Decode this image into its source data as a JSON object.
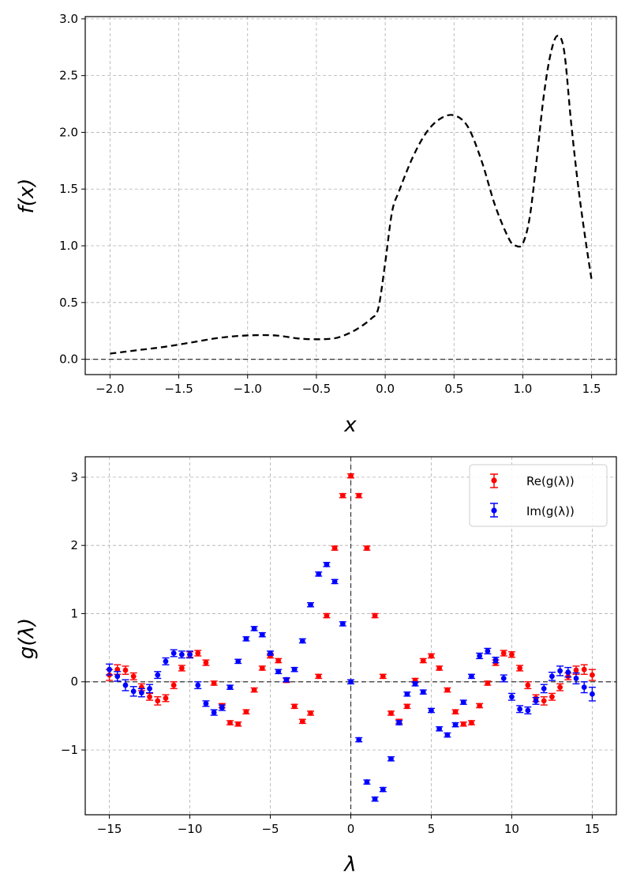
{
  "chart_data": [
    {
      "type": "line",
      "xlabel": "x",
      "ylabel": "f(x)",
      "xlim": [
        -2.18,
        1.68
      ],
      "ylim": [
        -0.135,
        3.02
      ],
      "xticks": [
        -2.0,
        -1.5,
        -1.0,
        -0.5,
        0.0,
        0.5,
        1.0,
        1.5
      ],
      "xtick_labels": [
        "−2.0",
        "−1.5",
        "−1.0",
        "−0.5",
        "0.0",
        "0.5",
        "1.0",
        "1.5"
      ],
      "yticks": [
        0.0,
        0.5,
        1.0,
        1.5,
        2.0,
        2.5,
        3.0
      ],
      "ytick_labels": [
        "0.0",
        "0.5",
        "1.0",
        "1.5",
        "2.0",
        "2.5",
        "3.0"
      ],
      "grid": true,
      "hline": 0.0,
      "series": [
        {
          "name": "f(x)",
          "color": "#000000",
          "style": "dashed",
          "x": [
            -2.0,
            -1.8,
            -1.6,
            -1.4,
            -1.2,
            -1.0,
            -0.8,
            -0.6,
            -0.4,
            -0.3,
            -0.2,
            -0.1,
            -0.05,
            0.0,
            0.05,
            0.1,
            0.2,
            0.3,
            0.4,
            0.5,
            0.6,
            0.7,
            0.8,
            0.9,
            0.95,
            1.0,
            1.05,
            1.1,
            1.15,
            1.2,
            1.25,
            1.3,
            1.35,
            1.4,
            1.45,
            1.5
          ],
          "y": [
            0.05,
            0.08,
            0.11,
            0.15,
            0.19,
            0.21,
            0.21,
            0.18,
            0.18,
            0.21,
            0.27,
            0.36,
            0.45,
            0.85,
            1.3,
            1.48,
            1.78,
            2.0,
            2.12,
            2.15,
            2.05,
            1.75,
            1.35,
            1.06,
            1.0,
            1.02,
            1.25,
            1.75,
            2.3,
            2.68,
            2.85,
            2.72,
            2.1,
            1.55,
            1.1,
            0.7
          ]
        }
      ]
    },
    {
      "type": "scatter",
      "xlabel": "λ",
      "ylabel": "g(λ)",
      "xlim": [
        -16.5,
        16.5
      ],
      "ylim": [
        -1.95,
        3.3
      ],
      "xticks": [
        -15,
        -10,
        -5,
        0,
        5,
        10,
        15
      ],
      "xtick_labels": [
        "−15",
        "−10",
        "−5",
        "0",
        "5",
        "10",
        "15"
      ],
      "yticks": [
        -1,
        0,
        1,
        2,
        3
      ],
      "ytick_labels": [
        "−1",
        "0",
        "1",
        "2",
        "3"
      ],
      "grid": true,
      "hline": 0,
      "vline": 0,
      "legend": {
        "placement": "top-right",
        "entries": [
          "Re(g(λ))",
          "Im(g(λ))"
        ]
      },
      "x": [
        -15,
        -14.5,
        -14,
        -13.5,
        -13,
        -12.5,
        -12,
        -11.5,
        -11,
        -10.5,
        -10,
        -9.5,
        -9,
        -8.5,
        -8,
        -7.5,
        -7,
        -6.5,
        -6,
        -5.5,
        -5,
        -4.5,
        -4,
        -3.5,
        -3,
        -2.5,
        -2,
        -1.5,
        -1,
        -0.5,
        0,
        0.5,
        1,
        1.5,
        2,
        2.5,
        3,
        3.5,
        4,
        4.5,
        5,
        5.5,
        6,
        6.5,
        7,
        7.5,
        8,
        8.5,
        9,
        9.5,
        10,
        10.5,
        11,
        11.5,
        12,
        12.5,
        13,
        13.5,
        14,
        14.5,
        15
      ],
      "series": [
        {
          "name": "Re(g(λ))",
          "color": "#ff0000",
          "values": [
            0.1,
            0.18,
            0.17,
            0.08,
            -0.08,
            -0.22,
            -0.28,
            -0.24,
            -0.05,
            0.2,
            0.4,
            0.42,
            0.28,
            -0.02,
            -0.35,
            -0.6,
            -0.62,
            -0.44,
            -0.12,
            0.2,
            0.38,
            0.31,
            0.02,
            -0.36,
            -0.58,
            -0.46,
            0.08,
            0.97,
            1.96,
            2.73,
            3.02,
            2.73,
            1.96,
            0.97,
            0.08,
            -0.46,
            -0.58,
            -0.36,
            0.02,
            0.31,
            0.38,
            0.2,
            -0.12,
            -0.44,
            -0.62,
            -0.6,
            -0.35,
            -0.02,
            0.28,
            0.42,
            0.4,
            0.2,
            -0.05,
            -0.24,
            -0.28,
            -0.22,
            -0.08,
            0.08,
            0.17,
            0.18,
            0.1
          ],
          "errors": [
            0.08,
            0.07,
            0.06,
            0.05,
            0.05,
            0.05,
            0.06,
            0.05,
            0.05,
            0.04,
            0.04,
            0.04,
            0.04,
            0.03,
            0.03,
            0.03,
            0.03,
            0.03,
            0.03,
            0.03,
            0.03,
            0.03,
            0.03,
            0.03,
            0.03,
            0.03,
            0.03,
            0.03,
            0.03,
            0.03,
            0.03,
            0.03,
            0.03,
            0.03,
            0.03,
            0.03,
            0.03,
            0.03,
            0.03,
            0.03,
            0.03,
            0.03,
            0.03,
            0.03,
            0.03,
            0.03,
            0.03,
            0.03,
            0.04,
            0.04,
            0.04,
            0.04,
            0.05,
            0.05,
            0.06,
            0.05,
            0.05,
            0.05,
            0.06,
            0.07,
            0.08
          ]
        },
        {
          "name": "Im(g(λ))",
          "color": "#0000ff",
          "values": [
            0.18,
            0.08,
            -0.05,
            -0.14,
            -0.16,
            -0.1,
            0.1,
            0.3,
            0.42,
            0.4,
            0.4,
            -0.05,
            -0.32,
            -0.45,
            -0.38,
            -0.08,
            0.3,
            0.63,
            0.78,
            0.69,
            0.42,
            0.15,
            0.03,
            0.18,
            0.6,
            1.13,
            1.58,
            1.72,
            1.47,
            0.85,
            0.0,
            -0.85,
            -1.47,
            -1.72,
            -1.58,
            -1.13,
            -0.6,
            -0.18,
            -0.03,
            -0.15,
            -0.42,
            -0.69,
            -0.78,
            -0.63,
            -0.3,
            0.08,
            0.38,
            0.45,
            0.32,
            0.05,
            -0.22,
            -0.4,
            -0.42,
            -0.28,
            -0.1,
            0.08,
            0.16,
            0.14,
            0.05,
            -0.08,
            -0.18
          ],
          "errors": [
            0.08,
            0.07,
            0.08,
            0.07,
            0.06,
            0.06,
            0.05,
            0.05,
            0.05,
            0.05,
            0.05,
            0.05,
            0.04,
            0.04,
            0.04,
            0.03,
            0.03,
            0.03,
            0.03,
            0.03,
            0.03,
            0.03,
            0.03,
            0.03,
            0.03,
            0.03,
            0.03,
            0.03,
            0.03,
            0.03,
            0.03,
            0.03,
            0.03,
            0.03,
            0.03,
            0.03,
            0.03,
            0.03,
            0.03,
            0.03,
            0.03,
            0.03,
            0.03,
            0.03,
            0.03,
            0.03,
            0.04,
            0.04,
            0.04,
            0.05,
            0.05,
            0.05,
            0.05,
            0.05,
            0.06,
            0.06,
            0.07,
            0.07,
            0.08,
            0.08,
            0.1
          ]
        }
      ]
    }
  ]
}
